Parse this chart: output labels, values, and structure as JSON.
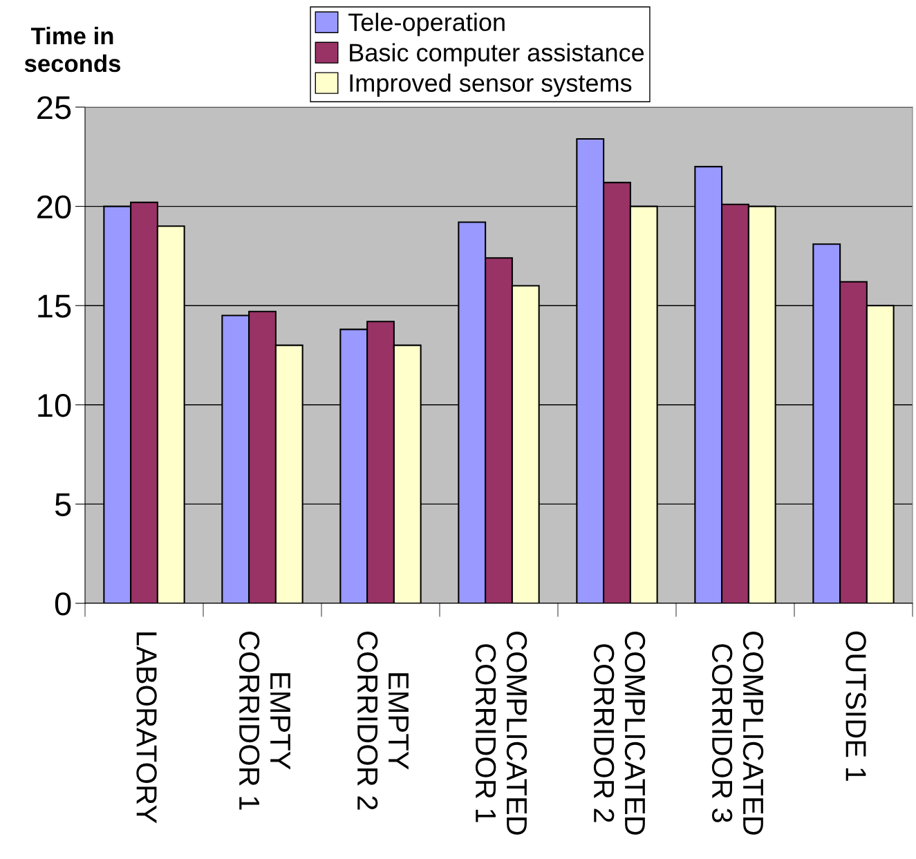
{
  "chart_data": {
    "type": "bar",
    "ylabel": "Time in\nseconds",
    "categories": [
      "LABORATORY",
      "EMPTY\nCORRIDOR 1",
      "EMPTY\nCORRIDOR 2",
      "COMPLICATED\nCORRIDOR 1",
      "COMPLICATED\nCORRIDOR 2",
      "COMPLICATED\nCORRIDOR 3",
      "OUTSIDE 1"
    ],
    "series": [
      {
        "name": "Tele-operation",
        "color": "#9999ff",
        "values": [
          20,
          14.5,
          13.8,
          19.2,
          23.4,
          22,
          18.1
        ]
      },
      {
        "name": "Basic computer assistance",
        "color": "#993366",
        "values": [
          20.2,
          14.7,
          14.2,
          17.4,
          21.2,
          20.1,
          16.2
        ]
      },
      {
        "name": "Improved sensor systems",
        "color": "#ffffcc",
        "values": [
          19,
          13,
          13,
          16,
          20,
          20,
          15
        ]
      }
    ],
    "ylim": [
      0,
      25
    ],
    "yticks": [
      0,
      5,
      10,
      15,
      20,
      25
    ],
    "grid": "y",
    "legend": "top"
  }
}
